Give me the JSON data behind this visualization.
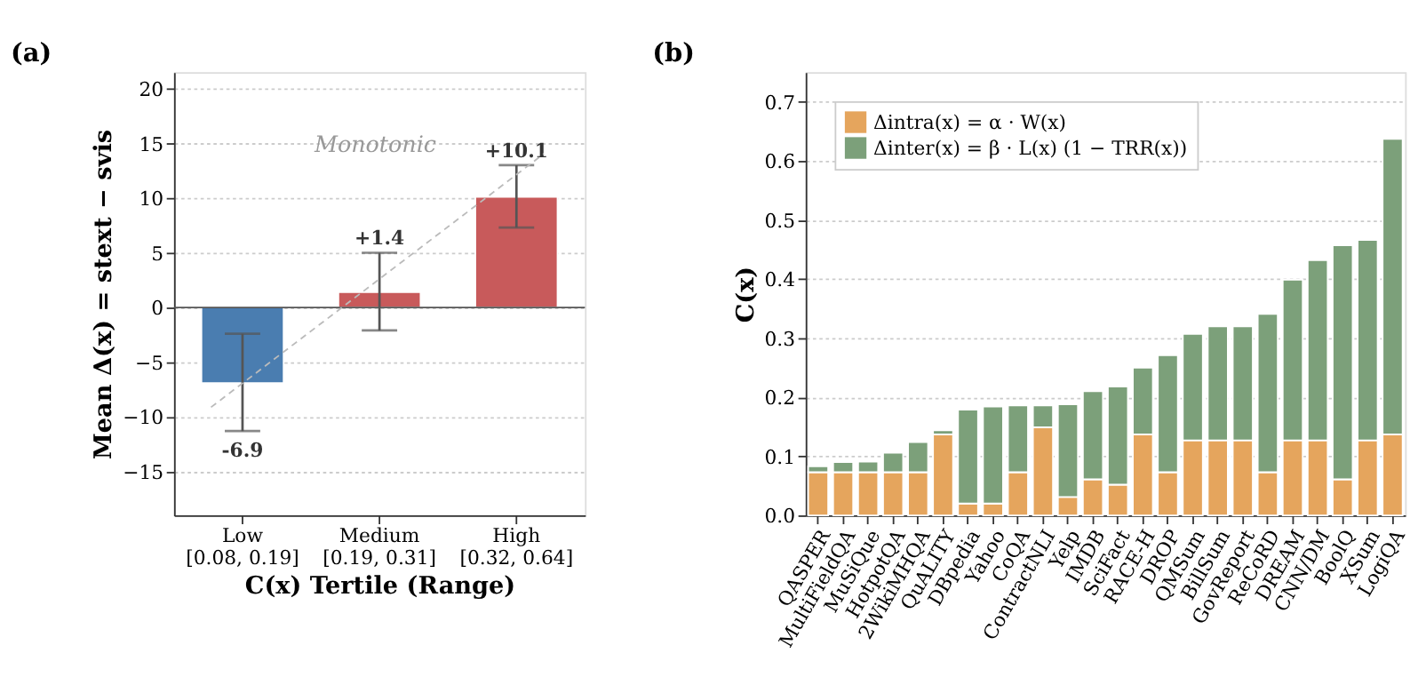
{
  "chart_data": [
    {
      "type": "bar",
      "title": "(a)",
      "xlabel": "C(x) Tertile  (Range)",
      "ylabel": "Mean Δ(x) = stext − svis",
      "categories": [
        "Low\n[0.08, 0.19]",
        "Medium\n[0.19, 0.31]",
        "High\n[0.32, 0.64]"
      ],
      "values": [
        -6.9,
        1.4,
        10.1
      ],
      "colors": [
        "#4a7db0",
        "#c85a5b",
        "#c85a5b"
      ],
      "errors": [
        [
          -11.3,
          -2.4
        ],
        [
          -2.1,
          5.0
        ],
        [
          7.3,
          13.0
        ]
      ],
      "value_labels": [
        "-6.9",
        "+1.4",
        "+10.1"
      ],
      "ylim": [
        -19,
        21.5
      ],
      "yticks": [
        {
          "value": -15,
          "label": "−15"
        },
        {
          "value": -10,
          "label": "−10"
        },
        {
          "value": -5,
          "label": "−5"
        },
        0,
        5,
        10,
        15,
        20
      ],
      "ref_lines": [
        {
          "axis": "y",
          "value": 0,
          "color": "#555555"
        }
      ],
      "annotations": [
        "Monotonic"
      ],
      "grid": "y"
    },
    {
      "type": "bar",
      "title": "(b)",
      "ylabel": "C(x)",
      "stacked": true,
      "categories": [
        "QASPER",
        "MultiFieldQA",
        "MuSiQue",
        "HotpotQA",
        "2WikiMHQA",
        "QuALITY",
        "DBpedia",
        "Yahoo",
        "CoQA",
        "ContractNLI",
        "Yelp",
        "IMDB",
        "SciFact",
        "RACE-H",
        "DROP",
        "QMSum",
        "BillSum",
        "GovReport",
        "ReCoRD",
        "DREAM",
        "CNN/DM",
        "BoolQ",
        "XSum",
        "LogiQA"
      ],
      "series": [
        {
          "name": "Δintra(x) = α · W(x)",
          "color": "#e5a55d",
          "values": [
            0.073,
            0.073,
            0.073,
            0.073,
            0.073,
            0.137,
            0.02,
            0.02,
            0.073,
            0.149,
            0.031,
            0.061,
            0.052,
            0.137,
            0.073,
            0.127,
            0.127,
            0.127,
            0.073,
            0.127,
            0.127,
            0.061,
            0.127,
            0.137
          ]
        },
        {
          "name": "Δinter(x) = β · L(x) (1 − TRR(x))",
          "color": "#7ca07a",
          "values": [
            0.01,
            0.017,
            0.018,
            0.033,
            0.051,
            0.007,
            0.159,
            0.164,
            0.113,
            0.037,
            0.157,
            0.149,
            0.166,
            0.113,
            0.198,
            0.18,
            0.193,
            0.193,
            0.268,
            0.272,
            0.305,
            0.396,
            0.339,
            0.5
          ]
        }
      ],
      "ylim": [
        0,
        0.75
      ],
      "yticks": [
        {
          "value": 0,
          "label": "0.0"
        },
        0.1,
        0.2,
        0.3,
        0.4,
        0.5,
        0.6,
        0.7
      ],
      "grid": "y",
      "legend": "top left"
    }
  ]
}
